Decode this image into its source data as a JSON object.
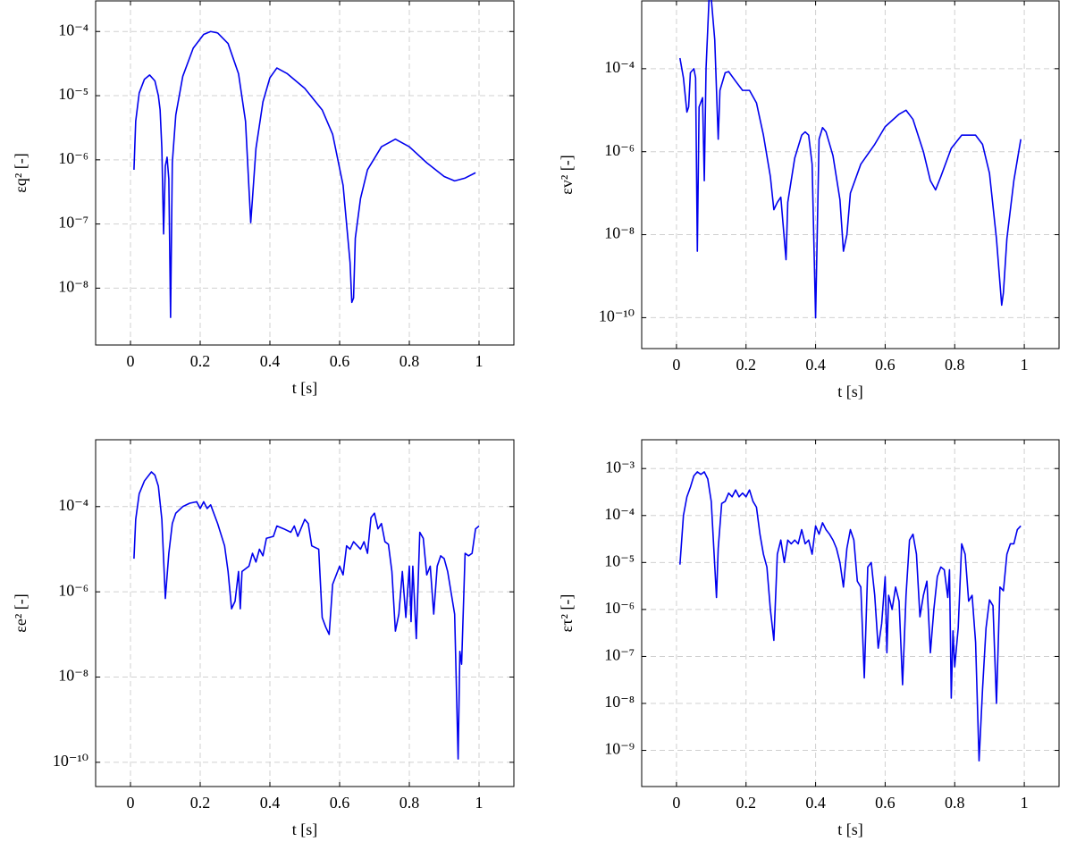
{
  "chart_data": [
    {
      "type": "line",
      "xlabel": "t [s]",
      "ylabel": "εq² [-]",
      "log_y": true,
      "grid": true,
      "color": "#0000ee",
      "xlim": [
        -0.1,
        1.1
      ],
      "xticks": [
        0,
        0.2,
        0.4,
        0.6,
        0.8,
        1
      ],
      "ylim": [
        1.3e-09,
        0.0003
      ],
      "yticks": [
        {
          "value": 1e-08,
          "label": "10⁻⁸"
        },
        {
          "value": 1e-07,
          "label": "10⁻⁷"
        },
        {
          "value": 1e-06,
          "label": "10⁻⁶"
        },
        {
          "value": 1e-05,
          "label": "10⁻⁵"
        },
        {
          "value": 0.0001,
          "label": "10⁻⁴"
        }
      ],
      "x": [
        0.01,
        0.015,
        0.025,
        0.04,
        0.055,
        0.07,
        0.08,
        0.085,
        0.09,
        0.095,
        0.1,
        0.105,
        0.11,
        0.115,
        0.12,
        0.13,
        0.15,
        0.18,
        0.21,
        0.23,
        0.25,
        0.28,
        0.31,
        0.33,
        0.345,
        0.35,
        0.36,
        0.38,
        0.4,
        0.42,
        0.45,
        0.5,
        0.55,
        0.58,
        0.61,
        0.63,
        0.635,
        0.64,
        0.645,
        0.66,
        0.68,
        0.72,
        0.76,
        0.8,
        0.85,
        0.9,
        0.93,
        0.96,
        0.99
      ],
      "values": [
        7e-07,
        4e-06,
        1.1e-05,
        1.8e-05,
        2.1e-05,
        1.7e-05,
        1e-05,
        6e-06,
        1.5e-06,
        7e-08,
        8e-07,
        1.1e-06,
        5e-07,
        3.5e-09,
        9e-07,
        5e-06,
        2e-05,
        5.5e-05,
        9e-05,
        0.0001,
        9.5e-05,
        6.5e-05,
        2.2e-05,
        4e-06,
        1.05e-07,
        2.5e-07,
        1.5e-06,
        8e-06,
        1.9e-05,
        2.7e-05,
        2.2e-05,
        1.3e-05,
        6e-06,
        2.5e-06,
        4e-07,
        2.5e-08,
        6e-09,
        7e-09,
        6e-08,
        2.5e-07,
        7e-07,
        1.6e-06,
        2.1e-06,
        1.6e-06,
        9e-07,
        5.5e-07,
        4.7e-07,
        5.2e-07,
        6.3e-07
      ]
    },
    {
      "type": "line",
      "xlabel": "t [s]",
      "ylabel": "εv² [-]",
      "log_y": true,
      "grid": true,
      "color": "#0000ee",
      "xlim": [
        -0.1,
        1.1
      ],
      "xticks": [
        0,
        0.2,
        0.4,
        0.6,
        0.8,
        1
      ],
      "ylim": [
        1.8e-11,
        0.0043
      ],
      "yticks": [
        {
          "value": 1e-10,
          "label": "10⁻¹⁰"
        },
        {
          "value": 1e-08,
          "label": "10⁻⁸"
        },
        {
          "value": 1e-06,
          "label": "10⁻⁶"
        },
        {
          "value": 0.0001,
          "label": "10⁻⁴"
        }
      ],
      "x": [
        0.01,
        0.02,
        0.03,
        0.035,
        0.04,
        0.05,
        0.055,
        0.06,
        0.065,
        0.075,
        0.08,
        0.085,
        0.095,
        0.1,
        0.11,
        0.12,
        0.125,
        0.14,
        0.15,
        0.17,
        0.19,
        0.21,
        0.23,
        0.25,
        0.27,
        0.28,
        0.29,
        0.3,
        0.315,
        0.32,
        0.34,
        0.36,
        0.37,
        0.38,
        0.39,
        0.4,
        0.41,
        0.42,
        0.43,
        0.45,
        0.47,
        0.48,
        0.49,
        0.5,
        0.53,
        0.57,
        0.6,
        0.64,
        0.66,
        0.68,
        0.71,
        0.73,
        0.745,
        0.76,
        0.79,
        0.82,
        0.86,
        0.88,
        0.9,
        0.92,
        0.935,
        0.94,
        0.95,
        0.97,
        0.99
      ],
      "values": [
        0.00018,
        6e-05,
        9e-06,
        1.2e-05,
        8e-05,
        0.0001,
        6e-05,
        4e-09,
        1.2e-05,
        2e-05,
        2e-07,
        0.0001,
        0.009,
        0.005,
        0.0005,
        2e-06,
        3e-05,
        8e-05,
        8.5e-05,
        5e-05,
        3e-05,
        3e-05,
        1.5e-05,
        2.5e-06,
        2.5e-07,
        4e-08,
        6e-08,
        8e-08,
        2.5e-09,
        6e-08,
        7e-07,
        2.5e-06,
        3e-06,
        2.5e-06,
        5e-07,
        1e-10,
        2e-06,
        3.8e-06,
        3e-06,
        8e-07,
        7e-08,
        4e-09,
        1e-08,
        1e-07,
        5e-07,
        1.5e-06,
        4e-06,
        8e-06,
        1e-05,
        6e-06,
        1e-06,
        2e-07,
        1.2e-07,
        2.5e-07,
        1.2e-06,
        2.5e-06,
        2.5e-06,
        1.5e-06,
        3e-07,
        8e-09,
        2e-10,
        4e-10,
        8e-09,
        2e-07,
        2e-06
      ]
    },
    {
      "type": "line",
      "xlabel": "t [s]",
      "ylabel": "εe² [-]",
      "log_y": true,
      "grid": true,
      "color": "#0000ee",
      "xlim": [
        -0.1,
        1.1
      ],
      "xticks": [
        0,
        0.2,
        0.4,
        0.6,
        0.8,
        1
      ],
      "ylim": [
        2.7e-11,
        0.0037
      ],
      "yticks": [
        {
          "value": 1e-10,
          "label": "10⁻¹⁰"
        },
        {
          "value": 1e-08,
          "label": "10⁻⁸"
        },
        {
          "value": 1e-06,
          "label": "10⁻⁶"
        },
        {
          "value": 0.0001,
          "label": "10⁻⁴"
        }
      ],
      "x": [
        0.01,
        0.015,
        0.025,
        0.04,
        0.06,
        0.07,
        0.08,
        0.09,
        0.1,
        0.11,
        0.12,
        0.13,
        0.15,
        0.17,
        0.19,
        0.2,
        0.21,
        0.22,
        0.23,
        0.25,
        0.27,
        0.28,
        0.29,
        0.3,
        0.31,
        0.315,
        0.32,
        0.34,
        0.35,
        0.36,
        0.37,
        0.38,
        0.39,
        0.41,
        0.42,
        0.44,
        0.46,
        0.47,
        0.48,
        0.5,
        0.51,
        0.52,
        0.54,
        0.55,
        0.56,
        0.57,
        0.58,
        0.6,
        0.61,
        0.62,
        0.63,
        0.64,
        0.66,
        0.67,
        0.68,
        0.69,
        0.7,
        0.71,
        0.72,
        0.73,
        0.74,
        0.75,
        0.76,
        0.77,
        0.78,
        0.79,
        0.8,
        0.805,
        0.81,
        0.82,
        0.83,
        0.84,
        0.85,
        0.86,
        0.87,
        0.88,
        0.89,
        0.9,
        0.91,
        0.93,
        0.94,
        0.945,
        0.95,
        0.96,
        0.97,
        0.98,
        0.99,
        1.0
      ],
      "values": [
        6e-06,
        5e-05,
        0.0002,
        0.0004,
        0.00065,
        0.00055,
        0.0003,
        5e-05,
        7e-07,
        8e-06,
        4e-05,
        7e-05,
        0.0001,
        0.00012,
        0.00013,
        9e-05,
        0.00013,
        9e-05,
        0.00011,
        4e-05,
        1.2e-05,
        3e-06,
        4e-07,
        6e-07,
        3e-06,
        4e-07,
        3e-06,
        4e-06,
        8e-06,
        5e-06,
        1e-05,
        7e-06,
        1.8e-05,
        2e-05,
        3.5e-05,
        3e-05,
        2.5e-05,
        3.5e-05,
        2e-05,
        5e-05,
        4e-05,
        1.2e-05,
        1e-05,
        2.5e-07,
        1.5e-07,
        1e-07,
        1.5e-06,
        4e-06,
        2.5e-06,
        1.2e-05,
        1e-05,
        1.5e-05,
        1e-05,
        1.5e-05,
        8e-06,
        5.5e-05,
        7e-05,
        3e-05,
        4e-05,
        1.5e-05,
        1.3e-05,
        3e-06,
        1.2e-07,
        3e-07,
        3e-06,
        2.5e-07,
        4e-06,
        2e-07,
        4e-06,
        8e-08,
        2.5e-05,
        1.8e-05,
        2.5e-06,
        4e-06,
        3e-07,
        4e-06,
        7e-06,
        6e-06,
        3e-06,
        3e-07,
        1.2e-10,
        4e-08,
        2e-08,
        8e-06,
        7e-06,
        8e-06,
        3e-05,
        3.5e-05
      ]
    },
    {
      "type": "line",
      "xlabel": "t [s]",
      "ylabel": "ετ² [-]",
      "log_y": true,
      "grid": true,
      "color": "#0000ee",
      "xlim": [
        -0.1,
        1.1
      ],
      "xticks": [
        0,
        0.2,
        0.4,
        0.6,
        0.8,
        1
      ],
      "ylim": [
        1.7e-10,
        0.0041
      ],
      "yticks": [
        {
          "value": 1e-09,
          "label": "10⁻⁹"
        },
        {
          "value": 1e-08,
          "label": "10⁻⁸"
        },
        {
          "value": 1e-07,
          "label": "10⁻⁷"
        },
        {
          "value": 1e-06,
          "label": "10⁻⁶"
        },
        {
          "value": 1e-05,
          "label": "10⁻⁵"
        },
        {
          "value": 0.0001,
          "label": "10⁻⁴"
        },
        {
          "value": 0.001,
          "label": "10⁻³"
        }
      ],
      "x": [
        0.01,
        0.02,
        0.03,
        0.04,
        0.05,
        0.06,
        0.07,
        0.08,
        0.09,
        0.1,
        0.115,
        0.12,
        0.13,
        0.14,
        0.15,
        0.16,
        0.17,
        0.18,
        0.19,
        0.2,
        0.21,
        0.22,
        0.23,
        0.24,
        0.25,
        0.26,
        0.27,
        0.28,
        0.29,
        0.3,
        0.31,
        0.32,
        0.33,
        0.34,
        0.35,
        0.36,
        0.37,
        0.38,
        0.39,
        0.4,
        0.41,
        0.42,
        0.43,
        0.44,
        0.45,
        0.46,
        0.47,
        0.48,
        0.49,
        0.5,
        0.51,
        0.52,
        0.53,
        0.54,
        0.55,
        0.56,
        0.57,
        0.58,
        0.59,
        0.6,
        0.605,
        0.61,
        0.62,
        0.63,
        0.64,
        0.65,
        0.66,
        0.67,
        0.68,
        0.69,
        0.7,
        0.71,
        0.72,
        0.73,
        0.74,
        0.75,
        0.76,
        0.77,
        0.78,
        0.785,
        0.79,
        0.795,
        0.8,
        0.81,
        0.82,
        0.83,
        0.84,
        0.85,
        0.86,
        0.87,
        0.88,
        0.89,
        0.9,
        0.91,
        0.92,
        0.93,
        0.94,
        0.95,
        0.96,
        0.97,
        0.98,
        0.99
      ],
      "values": [
        9e-06,
        0.0001,
        0.00025,
        0.0004,
        0.0007,
        0.00085,
        0.00075,
        0.00085,
        0.0006,
        0.0002,
        1.8e-06,
        2e-05,
        0.00018,
        0.0002,
        0.0003,
        0.00025,
        0.00035,
        0.00025,
        0.0003,
        0.00025,
        0.00035,
        0.0002,
        0.00015,
        4e-05,
        1.5e-05,
        8e-06,
        1e-06,
        2.2e-07,
        1.5e-05,
        3e-05,
        1e-05,
        3e-05,
        2.5e-05,
        3e-05,
        2.5e-05,
        5e-05,
        2.5e-05,
        3e-05,
        1.5e-05,
        6e-05,
        4e-05,
        7e-05,
        5e-05,
        4e-05,
        3e-05,
        2e-05,
        1e-05,
        3e-06,
        2e-05,
        5e-05,
        3e-05,
        4e-06,
        3e-06,
        3.5e-08,
        8e-06,
        1e-05,
        2e-06,
        1.5e-07,
        5e-07,
        5e-06,
        1.2e-07,
        2e-06,
        1e-06,
        3e-06,
        1.5e-06,
        2.5e-08,
        2e-06,
        3e-05,
        4e-05,
        1.5e-05,
        7e-07,
        2e-06,
        4e-06,
        1.2e-07,
        1e-06,
        5e-06,
        8e-06,
        7e-06,
        1.8e-06,
        7e-06,
        1.3e-08,
        3.5e-07,
        6e-08,
        4e-07,
        2.5e-05,
        1.5e-05,
        1.5e-06,
        2e-06,
        2e-07,
        6e-10,
        2e-08,
        4e-07,
        1.6e-06,
        1.2e-06,
        1e-08,
        3e-06,
        2.5e-06,
        1.5e-05,
        2.5e-05,
        2.5e-05,
        5e-05,
        6e-05
      ]
    }
  ]
}
